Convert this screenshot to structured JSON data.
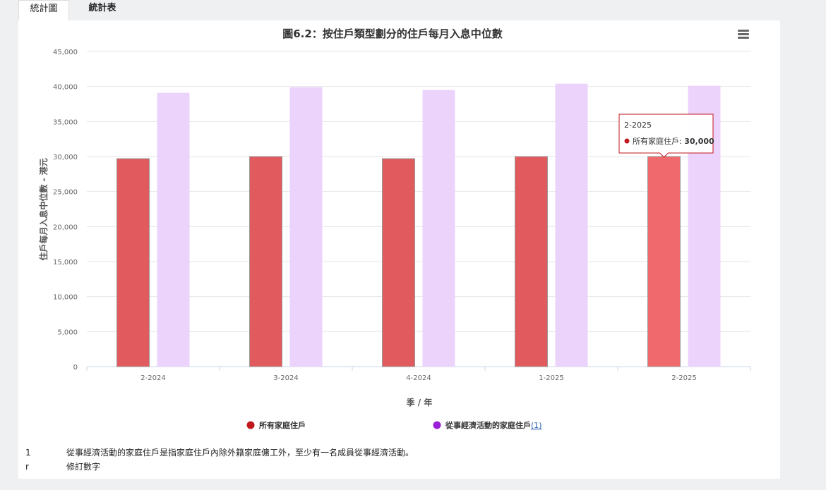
{
  "tabs": [
    {
      "label": "統計圖",
      "active": true
    },
    {
      "label": "統計表",
      "active": false
    }
  ],
  "chart_data": {
    "type": "bar",
    "title": "圖6.2：按住戶類型劃分的住戶每月入息中位數",
    "xlabel": "季 / 年",
    "ylabel": "住戶每月入息中位數 - 港元",
    "categories": [
      "2-2024",
      "3-2024",
      "4-2024",
      "1-2025",
      "2-2025"
    ],
    "ylim": [
      0,
      45000
    ],
    "yticks": [
      0,
      5000,
      10000,
      15000,
      20000,
      25000,
      30000,
      35000,
      40000,
      45000
    ],
    "ytick_labels": [
      "0",
      "5,000",
      "10,000",
      "15,000",
      "20,000",
      "25,000",
      "30,000",
      "35,000",
      "40,000",
      "45,000"
    ],
    "grid": true,
    "legend_position": "bottom",
    "series": [
      {
        "name": "所有家庭住戶",
        "values": [
          29700,
          30000,
          29700,
          30000,
          30000
        ],
        "color": "#e05a5e",
        "legend_color": "#c0181d"
      },
      {
        "name": "從事經濟活動的家庭住戶",
        "legend_link": "(1)",
        "values": [
          39100,
          39900,
          39500,
          40400,
          40100
        ],
        "color": "#ecd3fb",
        "legend_color": "#9b1fd8"
      }
    ],
    "tooltip": {
      "category": "2-2025",
      "series_name": "所有家庭住戶",
      "label": "所有家庭住戶:",
      "value": "30,000"
    }
  },
  "notes": [
    {
      "key": "1",
      "text": "從事經濟活動的家庭住戶是指家庭住戶內除外籍家庭傭工外，至少有一名成員從事經濟活動。"
    },
    {
      "key": "r",
      "text": "修訂數字"
    }
  ]
}
